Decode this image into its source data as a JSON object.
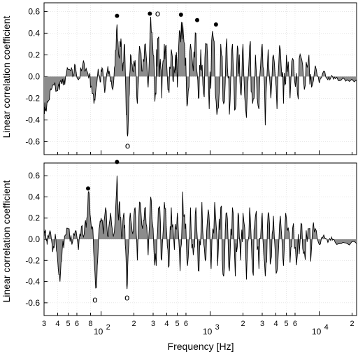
{
  "chart_data": {
    "type": "area",
    "xlabel": "Frequency [Hz]",
    "ylabel": "Linear correlation coefficient",
    "x_scale": "log",
    "xlim": [
      30,
      22000
    ],
    "x_ticks": [
      {
        "value": 30,
        "label": "3"
      },
      {
        "value": 40,
        "label": "4"
      },
      {
        "value": 50,
        "label": "5"
      },
      {
        "value": 60,
        "label": "6"
      },
      {
        "value": 80,
        "label": "8"
      },
      {
        "value": 100,
        "label": "10",
        "sup": "2"
      },
      {
        "value": 200,
        "label": "2"
      },
      {
        "value": 300,
        "label": "3"
      },
      {
        "value": 400,
        "label": "4"
      },
      {
        "value": 500,
        "label": "5"
      },
      {
        "value": 600,
        "label": "6"
      },
      {
        "value": 1000,
        "label": "10",
        "sup": "3"
      },
      {
        "value": 2000,
        "label": "2"
      },
      {
        "value": 3000,
        "label": "3"
      },
      {
        "value": 4000,
        "label": "4"
      },
      {
        "value": 5000,
        "label": "5"
      },
      {
        "value": 6000,
        "label": "6"
      },
      {
        "value": 10000,
        "label": "10",
        "sup": "4"
      },
      {
        "value": 20000,
        "label": "2"
      }
    ],
    "grid": true,
    "panels": [
      {
        "name": "top",
        "ylim": [
          -0.72,
          0.68
        ],
        "y_ticks": [
          {
            "value": 0.6,
            "label": "0.6"
          },
          {
            "value": 0.4,
            "label": "0.4"
          },
          {
            "value": 0.2,
            "label": "0.2"
          },
          {
            "value": 0.0,
            "label": "0.0"
          },
          {
            "value": -0.2,
            "label": "-0.2"
          },
          {
            "value": -0.4,
            "label": "-0.4"
          },
          {
            "value": -0.6,
            "label": "-0.6"
          }
        ],
        "anchors": [
          [
            30,
            -0.28
          ],
          [
            31,
            -0.3
          ],
          [
            33,
            -0.22
          ],
          [
            35,
            -0.12
          ],
          [
            37,
            -0.08
          ],
          [
            40,
            -0.13
          ],
          [
            42,
            -0.05
          ],
          [
            45,
            -0.08
          ],
          [
            48,
            0.02
          ],
          [
            52,
            0.06
          ],
          [
            55,
            0.0
          ],
          [
            58,
            0.1
          ],
          [
            62,
            -0.03
          ],
          [
            66,
            0.05
          ],
          [
            70,
            0.12
          ],
          [
            74,
            0.05
          ],
          [
            78,
            0.01
          ],
          [
            82,
            -0.1
          ],
          [
            86,
            -0.25
          ],
          [
            90,
            -0.1
          ],
          [
            94,
            0.07
          ],
          [
            98,
            -0.05
          ],
          [
            102,
            0.08
          ],
          [
            108,
            -0.15
          ],
          [
            114,
            0.05
          ],
          [
            120,
            0.02
          ],
          [
            128,
            -0.12
          ],
          [
            134,
            0.1
          ],
          [
            140,
            0.48
          ],
          [
            146,
            0.18
          ],
          [
            152,
            0.35
          ],
          [
            158,
            0.05
          ],
          [
            164,
            0.3
          ],
          [
            170,
            -0.35
          ],
          [
            175,
            -0.55
          ],
          [
            180,
            -0.2
          ],
          [
            186,
            0.2
          ],
          [
            195,
            0.05
          ],
          [
            205,
            0.15
          ],
          [
            215,
            -0.25
          ],
          [
            225,
            0.28
          ],
          [
            240,
            0.05
          ],
          [
            255,
            0.3
          ],
          [
            270,
            -0.1
          ],
          [
            285,
            0.55
          ],
          [
            300,
            0.2
          ],
          [
            315,
            -0.15
          ],
          [
            330,
            0.35
          ],
          [
            345,
            0.1
          ],
          [
            360,
            -0.2
          ],
          [
            380,
            0.3
          ],
          [
            400,
            0.1
          ],
          [
            420,
            -0.15
          ],
          [
            440,
            0.25
          ],
          [
            460,
            -0.05
          ],
          [
            480,
            0.2
          ],
          [
            500,
            -0.1
          ],
          [
            530,
            0.4
          ],
          [
            560,
            0.5
          ],
          [
            590,
            0.1
          ],
          [
            620,
            -0.25
          ],
          [
            660,
            0.3
          ],
          [
            700,
            0.05
          ],
          [
            740,
            0.4
          ],
          [
            780,
            -0.2
          ],
          [
            820,
            0.25
          ],
          [
            870,
            -0.15
          ],
          [
            920,
            0.3
          ],
          [
            980,
            -0.3
          ],
          [
            1050,
            0.42
          ],
          [
            1100,
            0.1
          ],
          [
            1170,
            -0.3
          ],
          [
            1250,
            0.3
          ],
          [
            1330,
            -0.25
          ],
          [
            1420,
            0.35
          ],
          [
            1500,
            -0.35
          ],
          [
            1600,
            0.3
          ],
          [
            1700,
            -0.3
          ],
          [
            1800,
            0.25
          ],
          [
            1900,
            -0.15
          ],
          [
            2000,
            0.3
          ],
          [
            2150,
            -0.38
          ],
          [
            2300,
            0.28
          ],
          [
            2450,
            -0.25
          ],
          [
            2600,
            0.2
          ],
          [
            2800,
            -0.3
          ],
          [
            3000,
            0.3
          ],
          [
            3200,
            -0.45
          ],
          [
            3400,
            0.25
          ],
          [
            3600,
            -0.2
          ],
          [
            3800,
            0.2
          ],
          [
            4100,
            -0.3
          ],
          [
            4400,
            0.25
          ],
          [
            4700,
            -0.25
          ],
          [
            5000,
            0.2
          ],
          [
            5400,
            -0.2
          ],
          [
            5800,
            0.15
          ],
          [
            6300,
            -0.15
          ],
          [
            6800,
            0.18
          ],
          [
            7300,
            -0.12
          ],
          [
            7900,
            0.12
          ],
          [
            8500,
            -0.1
          ],
          [
            9200,
            0.1
          ],
          [
            10000,
            -0.06
          ],
          [
            11000,
            0.05
          ],
          [
            12000,
            -0.03
          ],
          [
            13000,
            0.01
          ],
          [
            14000,
            -0.02
          ],
          [
            16000,
            -0.03
          ],
          [
            18000,
            -0.03
          ],
          [
            22000,
            -0.03
          ]
        ],
        "markers": [
          {
            "symbol": "●",
            "x": 140,
            "y": 0.56
          },
          {
            "symbol": "●",
            "x": 280,
            "y": 0.58
          },
          {
            "symbol": "o",
            "x": 330,
            "y": 0.58
          },
          {
            "symbol": "●",
            "x": 540,
            "y": 0.57
          },
          {
            "symbol": "●",
            "x": 760,
            "y": 0.52
          },
          {
            "symbol": "●",
            "x": 1130,
            "y": 0.48
          },
          {
            "symbol": "o",
            "x": 175,
            "y": -0.64
          }
        ]
      },
      {
        "name": "bottom",
        "ylim": [
          -0.72,
          0.72
        ],
        "y_ticks": [
          {
            "value": 0.6,
            "label": "0.6"
          },
          {
            "value": 0.4,
            "label": "0.4"
          },
          {
            "value": 0.2,
            "label": "0.2"
          },
          {
            "value": 0.0,
            "label": "0.0"
          },
          {
            "value": -0.2,
            "label": "-0.2"
          },
          {
            "value": -0.4,
            "label": "-0.4"
          },
          {
            "value": -0.6,
            "label": "-0.6"
          }
        ],
        "anchors": [
          [
            30,
            0.03
          ],
          [
            31,
            0.07
          ],
          [
            32,
            -0.05
          ],
          [
            34,
            0.08
          ],
          [
            36,
            -0.12
          ],
          [
            38,
            0.05
          ],
          [
            40,
            -0.2
          ],
          [
            42,
            -0.4
          ],
          [
            44,
            -0.1
          ],
          [
            47,
            0.04
          ],
          [
            50,
            0.1
          ],
          [
            54,
            -0.05
          ],
          [
            58,
            0.08
          ],
          [
            62,
            -0.1
          ],
          [
            66,
            0.12
          ],
          [
            70,
            0.05
          ],
          [
            74,
            0.2
          ],
          [
            77,
            0.45
          ],
          [
            80,
            0.2
          ],
          [
            84,
            0.1
          ],
          [
            87,
            -0.25
          ],
          [
            90,
            -0.46
          ],
          [
            93,
            -0.2
          ],
          [
            96,
            0.1
          ],
          [
            100,
            0.2
          ],
          [
            105,
            0.05
          ],
          [
            110,
            0.3
          ],
          [
            116,
            0.02
          ],
          [
            122,
            0.25
          ],
          [
            128,
            0.05
          ],
          [
            134,
            0.15
          ],
          [
            140,
            0.6
          ],
          [
            144,
            0.2
          ],
          [
            148,
            0.35
          ],
          [
            155,
            0.0
          ],
          [
            162,
            0.25
          ],
          [
            168,
            -0.1
          ],
          [
            173,
            -0.47
          ],
          [
            178,
            -0.1
          ],
          [
            185,
            0.25
          ],
          [
            195,
            0.05
          ],
          [
            205,
            0.3
          ],
          [
            215,
            -0.2
          ],
          [
            225,
            0.35
          ],
          [
            240,
            0.1
          ],
          [
            255,
            0.3
          ],
          [
            270,
            -0.15
          ],
          [
            285,
            0.4
          ],
          [
            300,
            0.1
          ],
          [
            320,
            -0.25
          ],
          [
            340,
            0.3
          ],
          [
            360,
            -0.2
          ],
          [
            380,
            0.35
          ],
          [
            400,
            0.05
          ],
          [
            420,
            -0.25
          ],
          [
            440,
            0.3
          ],
          [
            470,
            -0.1
          ],
          [
            500,
            0.25
          ],
          [
            530,
            -0.3
          ],
          [
            560,
            0.45
          ],
          [
            590,
            0.1
          ],
          [
            620,
            -0.25
          ],
          [
            660,
            0.3
          ],
          [
            700,
            -0.15
          ],
          [
            740,
            0.3
          ],
          [
            790,
            -0.3
          ],
          [
            840,
            0.35
          ],
          [
            900,
            -0.2
          ],
          [
            960,
            0.28
          ],
          [
            1020,
            -0.28
          ],
          [
            1100,
            0.35
          ],
          [
            1170,
            -0.25
          ],
          [
            1250,
            0.3
          ],
          [
            1330,
            -0.35
          ],
          [
            1420,
            0.25
          ],
          [
            1500,
            -0.3
          ],
          [
            1600,
            0.3
          ],
          [
            1700,
            -0.35
          ],
          [
            1800,
            0.25
          ],
          [
            1900,
            -0.2
          ],
          [
            2000,
            0.25
          ],
          [
            2150,
            -0.38
          ],
          [
            2300,
            0.3
          ],
          [
            2450,
            -0.3
          ],
          [
            2600,
            0.22
          ],
          [
            2800,
            -0.28
          ],
          [
            3000,
            0.25
          ],
          [
            3200,
            -0.35
          ],
          [
            3400,
            0.25
          ],
          [
            3600,
            -0.2
          ],
          [
            3800,
            0.22
          ],
          [
            4100,
            -0.3
          ],
          [
            4400,
            0.22
          ],
          [
            4700,
            -0.25
          ],
          [
            5000,
            0.2
          ],
          [
            5400,
            -0.22
          ],
          [
            5800,
            0.15
          ],
          [
            6300,
            -0.15
          ],
          [
            6800,
            0.15
          ],
          [
            7300,
            -0.12
          ],
          [
            7900,
            0.1
          ],
          [
            8500,
            -0.08
          ],
          [
            9200,
            0.1
          ],
          [
            10000,
            -0.05
          ],
          [
            11000,
            0.04
          ],
          [
            12000,
            -0.03
          ],
          [
            13000,
            0.02
          ],
          [
            14000,
            -0.03
          ],
          [
            16000,
            -0.04
          ],
          [
            18000,
            -0.04
          ],
          [
            22000,
            -0.04
          ]
        ],
        "markers": [
          {
            "symbol": "●",
            "x": 76,
            "y": 0.48
          },
          {
            "symbol": "●",
            "x": 140,
            "y": 0.73
          },
          {
            "symbol": "o",
            "x": 88,
            "y": -0.57
          },
          {
            "symbol": "o",
            "x": 173,
            "y": -0.55
          }
        ]
      }
    ]
  }
}
